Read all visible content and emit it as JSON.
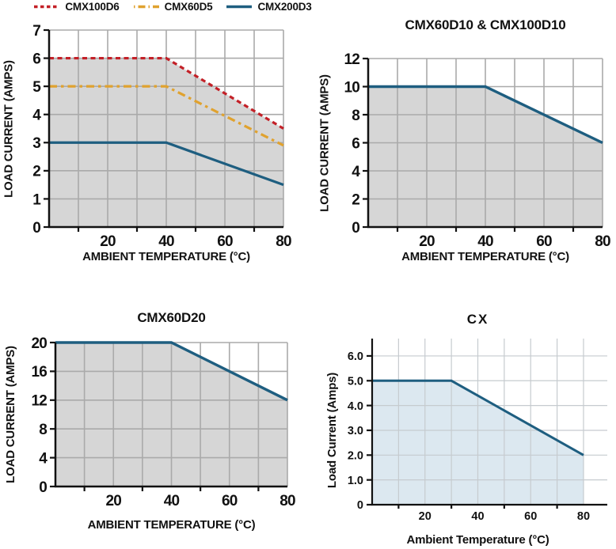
{
  "page": {
    "background": "#ffffff"
  },
  "colors": {
    "red": "#c32027",
    "orange": "#e0a22f",
    "blue": "#1e5e80",
    "gray_fill": "#d6d6d6",
    "grid": "#aaaaaa",
    "cx_fill": "#dce8f0",
    "cx_grid": "#c6cbcf",
    "axis": "#111111"
  },
  "legend": {
    "position": "top",
    "items": [
      {
        "label": "CMX100D6",
        "color": "#c32027",
        "style": "dashed"
      },
      {
        "label": "CMX60D5",
        "color": "#e0a22f",
        "style": "dashdot"
      },
      {
        "label": "CMX200D3",
        "color": "#1e5e80",
        "style": "solid"
      }
    ]
  },
  "chart_data": [
    {
      "type": "line",
      "title": "",
      "xlabel": "AMBIENT TEMPERATURE (°C)",
      "ylabel": "LOAD CURRENT (AMPS)",
      "xlim": [
        0,
        80
      ],
      "ylim": [
        0,
        7
      ],
      "x_ticks": [
        {
          "v": 20,
          "label": "20"
        },
        {
          "v": 40,
          "label": "40"
        },
        {
          "v": 60,
          "label": "60"
        },
        {
          "v": 80,
          "label": "80"
        }
      ],
      "x_minor_ticks": [
        10,
        30,
        50,
        70
      ],
      "y_ticks": [
        {
          "v": 0,
          "label": "0"
        },
        {
          "v": 1,
          "label": "1"
        },
        {
          "v": 2,
          "label": "2"
        },
        {
          "v": 3,
          "label": "3"
        },
        {
          "v": 4,
          "label": "4"
        },
        {
          "v": 5,
          "label": "5"
        },
        {
          "v": 6,
          "label": "6"
        },
        {
          "v": 7,
          "label": "7"
        }
      ],
      "grid_x": [
        10,
        20,
        30,
        40,
        50,
        60,
        70,
        80
      ],
      "grid_y": [
        1,
        2,
        3,
        4,
        5,
        6,
        7
      ],
      "grid_color": "#aaaaaa",
      "grid_on": true,
      "fill": {
        "color": "#d6d6d6",
        "under_series_index": 0
      },
      "series": [
        {
          "name": "CMX100D6",
          "color": "#c32027",
          "style": "dashed",
          "points": [
            [
              0,
              6
            ],
            [
              40,
              6
            ],
            [
              80,
              3.5
            ]
          ]
        },
        {
          "name": "CMX60D5",
          "color": "#e0a22f",
          "style": "dashdot",
          "points": [
            [
              0,
              5
            ],
            [
              40,
              5
            ],
            [
              80,
              2.9
            ]
          ]
        },
        {
          "name": "CMX200D3",
          "color": "#1e5e80",
          "style": "solid",
          "points": [
            [
              0,
              3
            ],
            [
              40,
              3
            ],
            [
              80,
              1.5
            ]
          ]
        }
      ]
    },
    {
      "type": "line",
      "title": "CMX60D10 & CMX100D10",
      "xlabel": "AMBIENT TEMPERATURE (°C)",
      "ylabel": "LOAD CURRENT (AMPS)",
      "xlim": [
        0,
        80
      ],
      "ylim": [
        0,
        12
      ],
      "x_ticks": [
        {
          "v": 20,
          "label": "20"
        },
        {
          "v": 40,
          "label": "40"
        },
        {
          "v": 60,
          "label": "60"
        },
        {
          "v": 80,
          "label": "80"
        }
      ],
      "x_minor_ticks": [
        10,
        30,
        50,
        70
      ],
      "y_ticks": [
        {
          "v": 0,
          "label": "0"
        },
        {
          "v": 2,
          "label": "2"
        },
        {
          "v": 4,
          "label": "4"
        },
        {
          "v": 6,
          "label": "6"
        },
        {
          "v": 8,
          "label": "8"
        },
        {
          "v": 10,
          "label": "10"
        },
        {
          "v": 12,
          "label": "12"
        }
      ],
      "grid_x": [
        10,
        20,
        30,
        40,
        50,
        60,
        70,
        80
      ],
      "grid_y": [
        2,
        4,
        6,
        8,
        10,
        12
      ],
      "grid_color": "#aaaaaa",
      "grid_on": true,
      "fill": {
        "color": "#d6d6d6",
        "under_series_index": 0
      },
      "series": [
        {
          "name": "CMX60D10 & CMX100D10",
          "color": "#1e5e80",
          "style": "solid",
          "points": [
            [
              0,
              10
            ],
            [
              40,
              10
            ],
            [
              80,
              6
            ]
          ]
        }
      ]
    },
    {
      "type": "line",
      "title": "CMX60D20",
      "xlabel": "AMBIENT TEMPERATURE (°C)",
      "ylabel": "LOAD CURRENT (AMPS)",
      "xlim": [
        0,
        80
      ],
      "ylim": [
        0,
        20
      ],
      "x_ticks": [
        {
          "v": 20,
          "label": "20"
        },
        {
          "v": 40,
          "label": "40"
        },
        {
          "v": 60,
          "label": "60"
        },
        {
          "v": 80,
          "label": "80"
        }
      ],
      "x_minor_ticks": [
        10,
        30,
        50,
        70
      ],
      "y_ticks": [
        {
          "v": 0,
          "label": "0"
        },
        {
          "v": 4,
          "label": "4"
        },
        {
          "v": 8,
          "label": "8"
        },
        {
          "v": 12,
          "label": "12"
        },
        {
          "v": 16,
          "label": "16"
        },
        {
          "v": 20,
          "label": "20"
        }
      ],
      "grid_x": [
        10,
        20,
        30,
        40,
        50,
        60,
        70,
        80
      ],
      "grid_y": [
        4,
        8,
        12,
        16,
        20
      ],
      "grid_color": "#aaaaaa",
      "grid_on": true,
      "fill": {
        "color": "#d6d6d6",
        "under_series_index": 0
      },
      "series": [
        {
          "name": "CMX60D20",
          "color": "#1e5e80",
          "style": "solid",
          "points": [
            [
              0,
              20
            ],
            [
              40,
              20
            ],
            [
              80,
              12
            ]
          ]
        }
      ]
    },
    {
      "type": "line",
      "title": "CX",
      "xlabel": "Ambient Temperature (°C)",
      "ylabel": "Load Current (Amps)",
      "xlim": [
        0,
        89
      ],
      "ylim": [
        0,
        6.7
      ],
      "x_ticks": [
        {
          "v": 20,
          "label": "20"
        },
        {
          "v": 40,
          "label": "40"
        },
        {
          "v": 60,
          "label": "60"
        },
        {
          "v": 80,
          "label": "80"
        }
      ],
      "x_minor_ticks": [
        10,
        30,
        50,
        70
      ],
      "y_ticks": [
        {
          "v": 0,
          "label": "0"
        },
        {
          "v": 1,
          "label": "1.0"
        },
        {
          "v": 2,
          "label": "2.0"
        },
        {
          "v": 3,
          "label": "3.0"
        },
        {
          "v": 4,
          "label": "4.0"
        },
        {
          "v": 5,
          "label": "5.0"
        },
        {
          "v": 6,
          "label": "6.0"
        }
      ],
      "grid_x": [
        10,
        20,
        30,
        40,
        50,
        60,
        70,
        80
      ],
      "grid_y": [
        1,
        2,
        3,
        4,
        5,
        6
      ],
      "grid_color": "#c6cbcf",
      "grid_on": true,
      "fill": {
        "color": "#dce8f0",
        "under_series_index": 0
      },
      "series": [
        {
          "name": "CX",
          "color": "#1e5e80",
          "style": "solid",
          "points": [
            [
              0,
              5
            ],
            [
              30,
              5
            ],
            [
              80,
              2
            ]
          ]
        }
      ]
    }
  ]
}
